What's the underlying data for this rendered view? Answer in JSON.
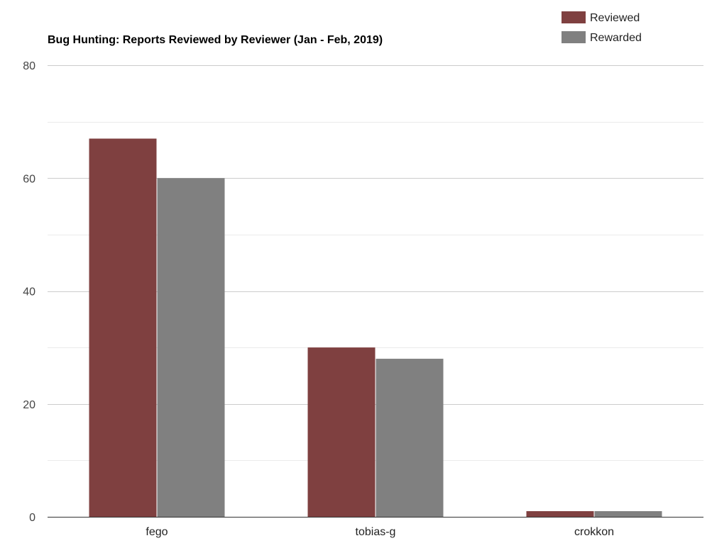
{
  "chart_data": {
    "type": "bar",
    "title": "Bug Hunting: Reports Reviewed by Reviewer (Jan - Feb, 2019)",
    "xlabel": "",
    "ylabel": "",
    "categories": [
      "fego",
      "tobias-g",
      "crokkon"
    ],
    "series": [
      {
        "name": "Reviewed",
        "color": "#7f4040",
        "values": [
          67,
          30,
          1
        ]
      },
      {
        "name": "Rewarded",
        "color": "#808080",
        "values": [
          60,
          28,
          1
        ]
      }
    ],
    "ylim": [
      0,
      80
    ],
    "yticks": [
      "0",
      "20",
      "40",
      "60",
      "80"
    ],
    "grid": true,
    "legend_position": "top-right"
  }
}
